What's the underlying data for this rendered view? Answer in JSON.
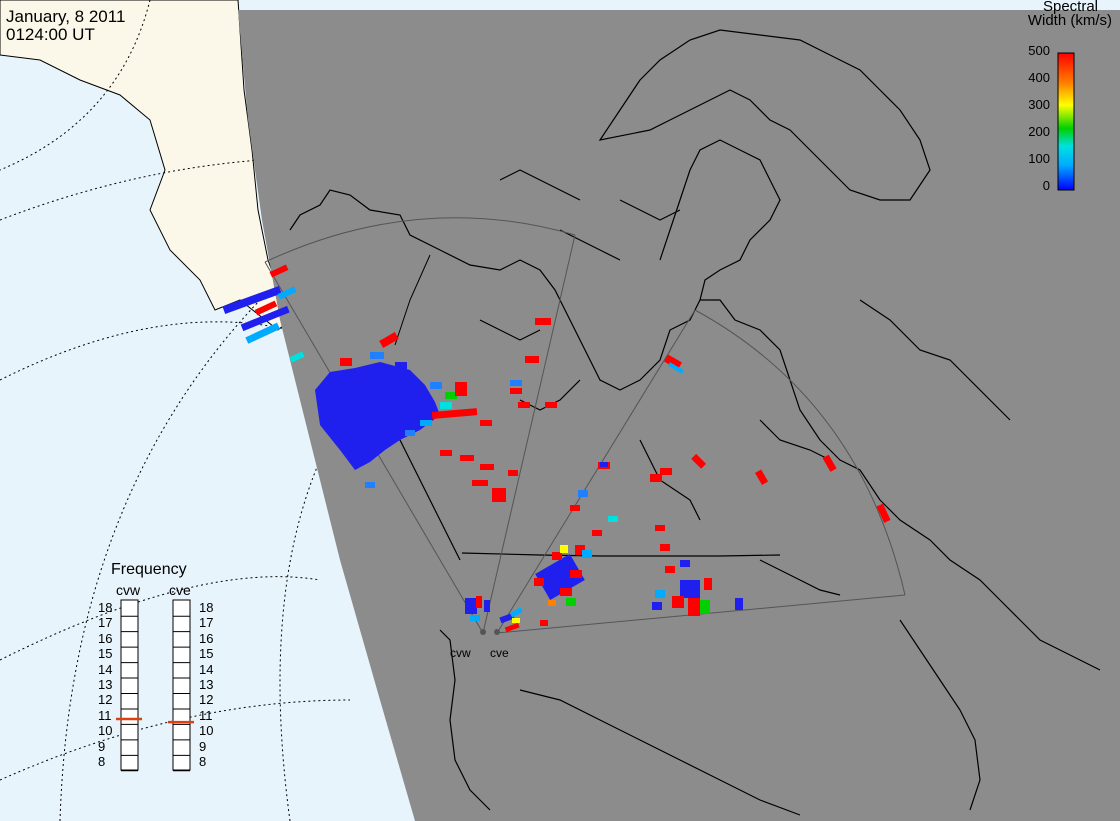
{
  "header": {
    "date": "January, 8 2011",
    "time": "0124:00 UT"
  },
  "colorbar": {
    "title_line1": "Spectral",
    "title_line2": "Width (km/s)",
    "ticks": [
      "500",
      "400",
      "300",
      "200",
      "100",
      "0"
    ],
    "range": [
      0,
      500
    ],
    "colors": [
      "#0000ff",
      "#00aaff",
      "#00e0e0",
      "#00d000",
      "#ffff00",
      "#ff8000",
      "#ff0000"
    ]
  },
  "frequency_panel": {
    "title": "Frequency",
    "radars": [
      {
        "name": "cvw",
        "frequency_mhz": 10.8
      },
      {
        "name": "cve",
        "frequency_mhz": 10.6
      }
    ],
    "ticks": [
      "18",
      "17",
      "16",
      "15",
      "14",
      "13",
      "12",
      "11",
      "10",
      "9",
      "8"
    ]
  },
  "sites": [
    {
      "label": "cvw"
    },
    {
      "label": "cve"
    }
  ],
  "colors": {
    "ocean_day": "#e8f4fc",
    "land_day": "#fbf8ea",
    "night": "#8c8c8c",
    "marker": "#e04010"
  }
}
